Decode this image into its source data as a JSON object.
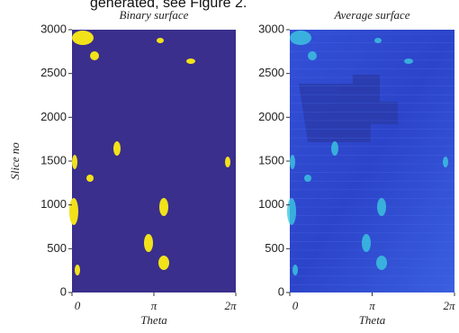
{
  "caption_fragment": "generated, see Figure 2.",
  "figures": [
    {
      "title": "Binary surface",
      "xlabel": "Theta",
      "ylabel": "Slice no",
      "xlim": [
        0,
        6.2832
      ],
      "ylim": [
        0,
        3000
      ],
      "xticks": [
        0,
        {
          "value": 3.1416,
          "label": "π"
        },
        {
          "value": 6.2832,
          "label": "2π"
        }
      ],
      "yticks": [
        0,
        500,
        1000,
        1500,
        2000,
        2500,
        3000
      ]
    },
    {
      "title": "Average surface",
      "xlabel": "Theta",
      "xlim": [
        0,
        6.2832
      ],
      "ylim": [
        0,
        3000
      ],
      "xticks": [
        0,
        {
          "value": 3.1416,
          "label": "π"
        },
        {
          "value": 6.2832,
          "label": "2π"
        }
      ],
      "yticks": [
        0,
        500,
        1000,
        1500,
        2000,
        2500,
        3000
      ]
    }
  ]
}
